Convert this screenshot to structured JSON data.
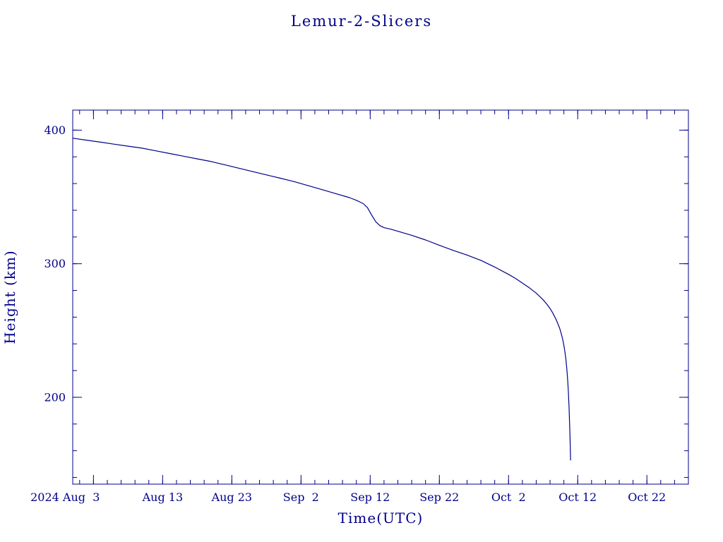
{
  "colors": {
    "accent": "#00008b",
    "background": "#ffffff"
  },
  "chart_data": {
    "type": "line",
    "title": "Lemur-2-Slicers",
    "xlabel": "Time(UTC)",
    "ylabel": "Height (km)",
    "x_unit": "days since 2024 Aug 1 00:00 UTC",
    "xlim": [
      -1,
      88
    ],
    "ylim": [
      135,
      415
    ],
    "grid": false,
    "legend": "none",
    "frame": "box with inward mirrored ticks",
    "x_minor_step_days": 2,
    "y_minor_step": 20,
    "x_ticks": [
      {
        "day": 2,
        "label": "2024 Aug  3"
      },
      {
        "day": 12,
        "label": "Aug 13"
      },
      {
        "day": 22,
        "label": "Aug 23"
      },
      {
        "day": 32,
        "label": "Sep  2"
      },
      {
        "day": 42,
        "label": "Sep 12"
      },
      {
        "day": 52,
        "label": "Sep 22"
      },
      {
        "day": 62,
        "label": "Oct  2"
      },
      {
        "day": 72,
        "label": "Oct 12"
      },
      {
        "day": 82,
        "label": "Oct 22"
      }
    ],
    "y_ticks": [
      {
        "value": 200,
        "label": "200"
      },
      {
        "value": 300,
        "label": "300"
      },
      {
        "value": 400,
        "label": "400"
      }
    ],
    "series": [
      {
        "name": "Lemur-2-Slicers",
        "color": "#00008b",
        "points": [
          [
            -1,
            394
          ],
          [
            1,
            392.5
          ],
          [
            3,
            391
          ],
          [
            5,
            389.5
          ],
          [
            7,
            388
          ],
          [
            9,
            386.5
          ],
          [
            11,
            384.5
          ],
          [
            13,
            382.5
          ],
          [
            15,
            380.5
          ],
          [
            17,
            378.5
          ],
          [
            19,
            376.5
          ],
          [
            21,
            374
          ],
          [
            23,
            371.5
          ],
          [
            25,
            369
          ],
          [
            27,
            366.5
          ],
          [
            29,
            364
          ],
          [
            31,
            361.5
          ],
          [
            33,
            358.5
          ],
          [
            35,
            355.5
          ],
          [
            37,
            352.5
          ],
          [
            39,
            349.5
          ],
          [
            40,
            347.5
          ],
          [
            41,
            345
          ],
          [
            41.6,
            342
          ],
          [
            42.2,
            336.5
          ],
          [
            42.8,
            331.5
          ],
          [
            43.4,
            328.5
          ],
          [
            44,
            327
          ],
          [
            45,
            325.8
          ],
          [
            46,
            324.3
          ],
          [
            48,
            321.3
          ],
          [
            50,
            317.8
          ],
          [
            52,
            313.8
          ],
          [
            54,
            310
          ],
          [
            56,
            306.5
          ],
          [
            58,
            302.5
          ],
          [
            60,
            297.5
          ],
          [
            62,
            292
          ],
          [
            63,
            289
          ],
          [
            64,
            285.5
          ],
          [
            65,
            282
          ],
          [
            66,
            278
          ],
          [
            67,
            273
          ],
          [
            67.5,
            270
          ],
          [
            68,
            266.5
          ],
          [
            68.4,
            263
          ],
          [
            68.8,
            259
          ],
          [
            69.1,
            255.5
          ],
          [
            69.4,
            251.5
          ],
          [
            69.6,
            248
          ],
          [
            69.8,
            244
          ],
          [
            70,
            239
          ],
          [
            70.15,
            234
          ],
          [
            70.3,
            228
          ],
          [
            70.45,
            220
          ],
          [
            70.55,
            213
          ],
          [
            70.65,
            204
          ],
          [
            70.75,
            192
          ],
          [
            70.85,
            176
          ],
          [
            70.92,
            163
          ],
          [
            70.97,
            153
          ]
        ]
      }
    ]
  }
}
